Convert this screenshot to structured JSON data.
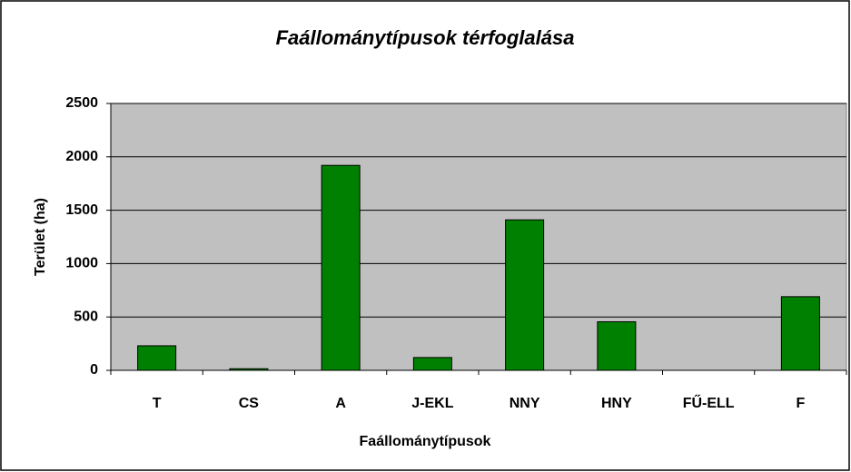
{
  "chart_data": {
    "type": "bar",
    "title": "Faállománytípusok térfoglalása",
    "x_label": "Faállománytípusok",
    "y_label": "Terület (ha)",
    "categories": [
      "T",
      "CS",
      "A",
      "J-EKL",
      "NNY",
      "HNY",
      "FŰ-ELL",
      "F"
    ],
    "values": [
      230,
      15,
      1920,
      120,
      1410,
      455,
      0,
      690
    ],
    "color": "#008000",
    "ylim": [
      0,
      2500
    ],
    "yticks": [
      0,
      500,
      1000,
      1500,
      2000,
      2500
    ],
    "grid": true
  }
}
